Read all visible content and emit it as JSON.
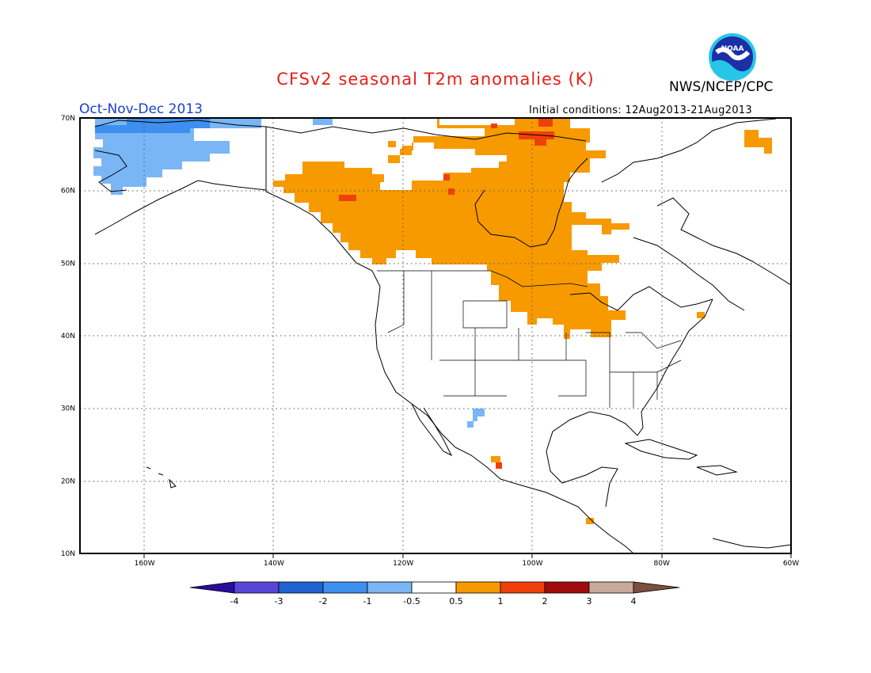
{
  "header": {
    "title": "CFSv2 seasonal T2m anomalies (K)",
    "period": "Oct-Nov-Dec 2013",
    "agency": "NWS/NCEP/CPC",
    "initial_conditions": "Initial conditions: 12Aug2013-21Aug2013",
    "logo_text": "NOAA"
  },
  "map": {
    "lon_range": [
      -170,
      -60
    ],
    "lat_range": [
      10,
      70
    ],
    "lon_ticks": [
      "160W",
      "140W",
      "120W",
      "100W",
      "80W",
      "60W"
    ],
    "lat_ticks": [
      "70N",
      "60N",
      "50N",
      "40N",
      "30N",
      "20N",
      "10N"
    ],
    "grid": "dotted"
  },
  "colorbar": {
    "labels": [
      "-4",
      "-3",
      "-2",
      "-1",
      "-0.5",
      "0.5",
      "1",
      "2",
      "3",
      "4"
    ],
    "colors": [
      "#2a0c9a",
      "#5a46d6",
      "#1f63d1",
      "#3d8ff0",
      "#7ab6f5",
      "#ffffff",
      "#f79a00",
      "#f0400a",
      "#a00c0c",
      "#c9a99a",
      "#7a4f3f"
    ]
  }
}
